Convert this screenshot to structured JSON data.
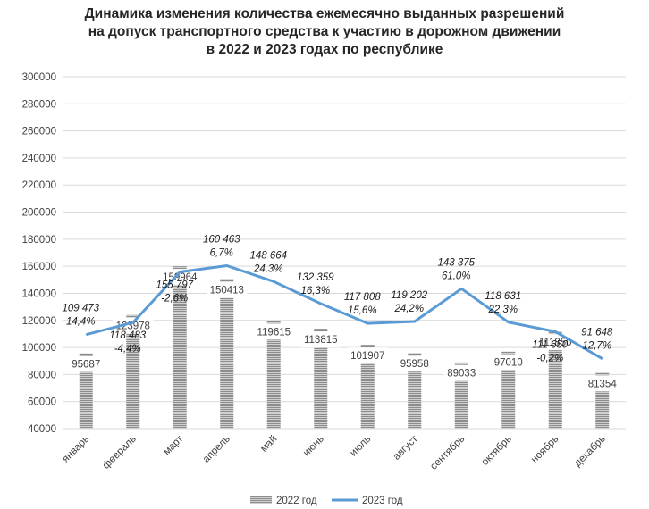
{
  "chart_data": {
    "type": "bar",
    "title_lines": [
      "Динамика изменения количества ежемесячно выданных разрешений",
      "на допуск транспортного средства к участию в дорожном движении",
      "в 2022 и 2023 годах по республике"
    ],
    "categories": [
      "январь",
      "февраль",
      "март",
      "апрель",
      "май",
      "июнь",
      "июль",
      "август",
      "сентябрь",
      "октябрь",
      "ноябрь",
      "декабрь"
    ],
    "ylim": [
      40000,
      300000
    ],
    "yticks": [
      "40000",
      "60000",
      "80000",
      "100000",
      "120000",
      "140000",
      "160000",
      "180000",
      "200000",
      "220000",
      "240000",
      "260000",
      "280000",
      "300000"
    ],
    "grid": true,
    "legend_position": "bottom",
    "series": [
      {
        "name": "2022 год",
        "type": "bar",
        "color": "#a6a6a6",
        "values": [
          95687,
          123978,
          159964,
          150413,
          119615,
          113815,
          101907,
          95958,
          89033,
          97010,
          111850,
          81354
        ],
        "labels": [
          "95687",
          "123978",
          "159964",
          "150413",
          "119615",
          "113815",
          "101907",
          "95958",
          "89033",
          "97010",
          "111850",
          "81354"
        ]
      },
      {
        "name": "2023 год",
        "type": "line",
        "color": "#5b9bd5",
        "values": [
          109473,
          118483,
          155797,
          160463,
          148664,
          132359,
          117808,
          119202,
          143375,
          118631,
          111650,
          91648
        ],
        "labels": [
          "109 473",
          "118 483",
          "155 797",
          "160 463",
          "148 664",
          "132 359",
          "117 808",
          "119 202",
          "143 375",
          "118 631",
          "111 650",
          "91 648"
        ],
        "changes": [
          "14,4%",
          "-4,4%",
          "-2,6%",
          "6,7%",
          "24,3%",
          "16,3%",
          "15,6%",
          "24,2%",
          "61,0%",
          "22,3%",
          "-0,2%",
          "12,7%"
        ]
      }
    ]
  }
}
